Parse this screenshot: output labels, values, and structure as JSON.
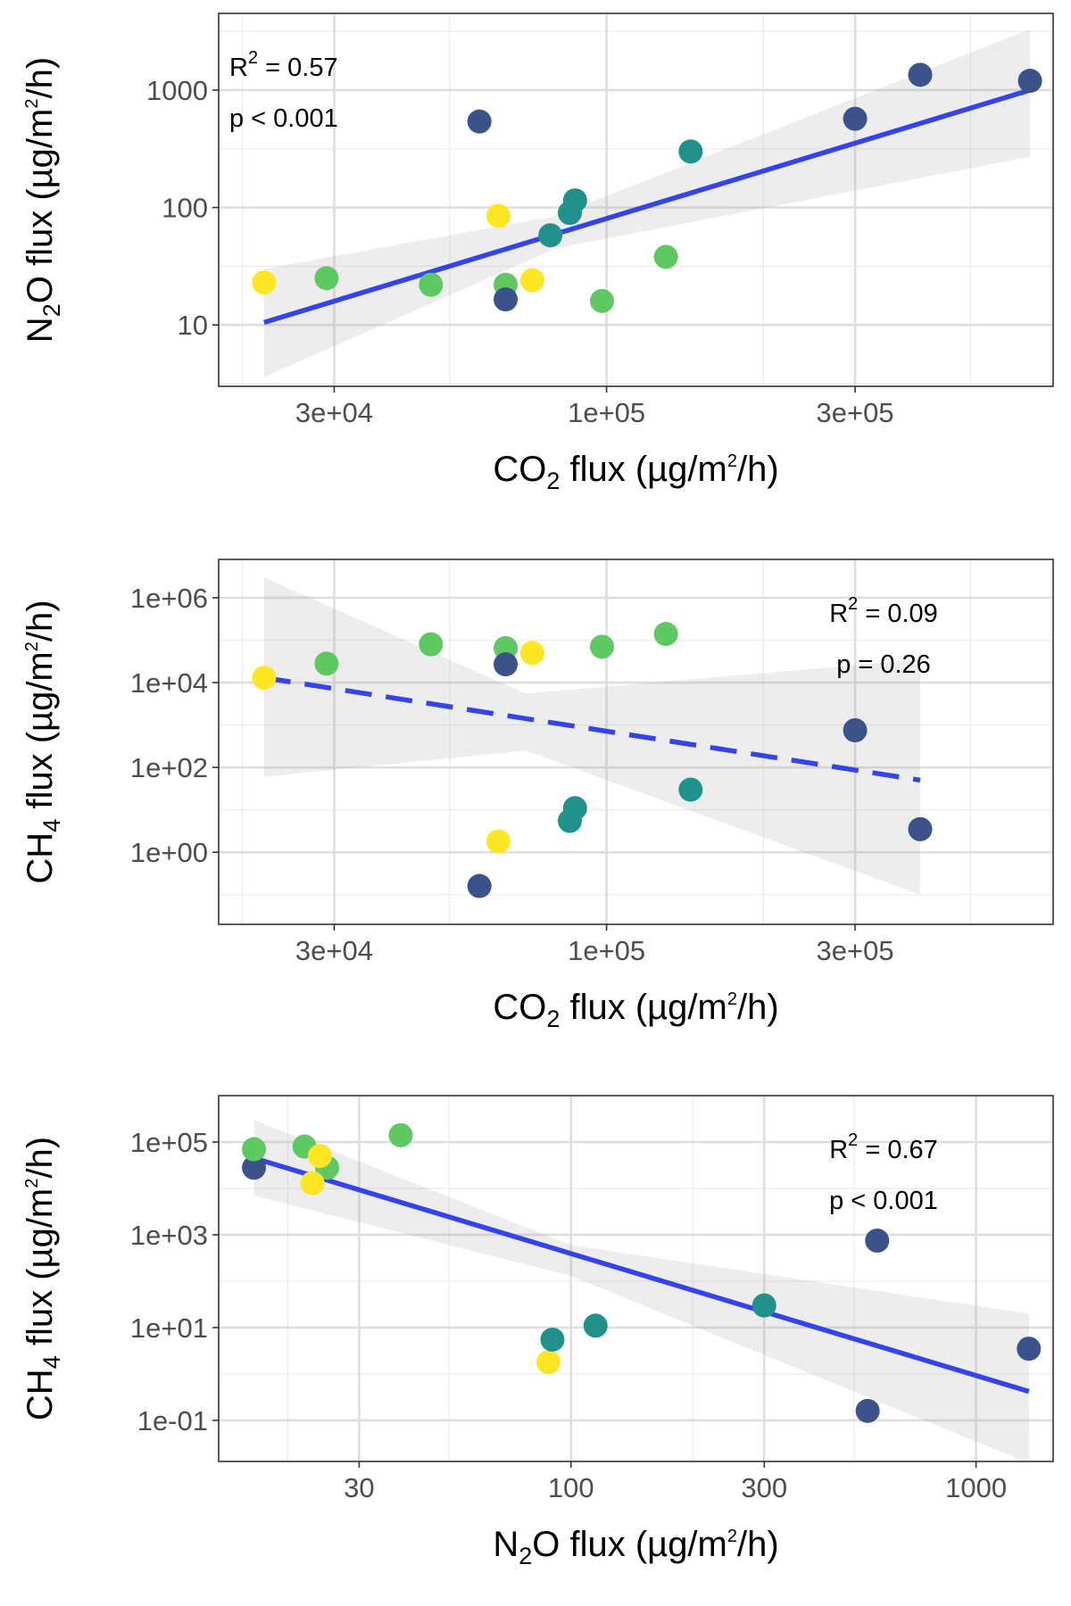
{
  "chart_data": [
    {
      "type": "scatter",
      "x_scale": "log",
      "y_scale": "log",
      "xlabel": {
        "pre": "CO",
        "sub": "2",
        "mid": " flux (µg/m",
        "sup": "2",
        "post": "/h)"
      },
      "ylabel": {
        "pre": "N",
        "sub": "2",
        "mid": "O flux (µg/m",
        "sup": "2",
        "post": "/h)"
      },
      "xlim": [
        18000,
        720000
      ],
      "ylim": [
        3,
        4500
      ],
      "x_ticks": [
        30000,
        100000,
        300000
      ],
      "x_tick_labels": [
        "3e+04",
        "1e+05",
        "3e+05"
      ],
      "x_minor_gridlines": [
        20000,
        50000,
        200000,
        500000
      ],
      "y_ticks": [
        10,
        100,
        1000
      ],
      "y_tick_labels": [
        "10",
        "100",
        "1000"
      ],
      "y_minor_gridlines": [
        3.16,
        31.6,
        316,
        3162
      ],
      "grid": true,
      "annotation": {
        "r2_prefix": "R",
        "r2_sup": "2",
        "r2_value": " = 0.57",
        "p_text": "p < 0.001",
        "position": "top-left"
      },
      "fit": {
        "x_range": [
          22000,
          650000
        ],
        "y_range": [
          10.5,
          1000
        ],
        "style": "solid",
        "color": "#3344ee",
        "band_lower": [
          [
            22000,
            3.6
          ],
          [
            80000,
            45
          ],
          [
            650000,
            270
          ]
        ],
        "band_upper": [
          [
            22000,
            30
          ],
          [
            80000,
            85
          ],
          [
            650000,
            3300
          ]
        ]
      },
      "points": [
        {
          "x": 22000,
          "y": 23,
          "color": "#fde725"
        },
        {
          "x": 29000,
          "y": 25,
          "color": "#5ec962"
        },
        {
          "x": 46000,
          "y": 22,
          "color": "#5ec962"
        },
        {
          "x": 62000,
          "y": 85,
          "color": "#fde725"
        },
        {
          "x": 64000,
          "y": 22,
          "color": "#5ec962"
        },
        {
          "x": 64000,
          "y": 16.5,
          "color": "#3b528b"
        },
        {
          "x": 57000,
          "y": 540,
          "color": "#3b528b"
        },
        {
          "x": 72000,
          "y": 24,
          "color": "#fde725"
        },
        {
          "x": 78000,
          "y": 58,
          "color": "#21918c"
        },
        {
          "x": 85000,
          "y": 90,
          "color": "#21918c"
        },
        {
          "x": 87000,
          "y": 115,
          "color": "#21918c"
        },
        {
          "x": 98000,
          "y": 16,
          "color": "#5ec962"
        },
        {
          "x": 130000,
          "y": 38,
          "color": "#5ec962"
        },
        {
          "x": 145000,
          "y": 300,
          "color": "#21918c"
        },
        {
          "x": 300000,
          "y": 570,
          "color": "#3b528b"
        },
        {
          "x": 400000,
          "y": 1350,
          "color": "#3b528b"
        },
        {
          "x": 650000,
          "y": 1200,
          "color": "#3b528b"
        }
      ]
    },
    {
      "type": "scatter",
      "x_scale": "log",
      "y_scale": "log",
      "xlabel": {
        "pre": "CO",
        "sub": "2",
        "mid": " flux (µg/m",
        "sup": "2",
        "post": "/h)"
      },
      "ylabel": {
        "pre": "CH",
        "sub": "4",
        "mid": " flux (µg/m",
        "sup": "2",
        "post": "/h)"
      },
      "xlim": [
        18000,
        720000
      ],
      "ylim": [
        0.02,
        8000000
      ],
      "x_ticks": [
        30000,
        100000,
        300000
      ],
      "x_tick_labels": [
        "3e+04",
        "1e+05",
        "3e+05"
      ],
      "x_minor_gridlines": [
        20000,
        50000,
        200000,
        500000
      ],
      "y_ticks": [
        1,
        100,
        10000,
        1000000
      ],
      "y_tick_labels": [
        "1e+00",
        "1e+02",
        "1e+04",
        "1e+06"
      ],
      "y_minor_gridlines": [
        0.1,
        10,
        1000,
        100000
      ],
      "grid": true,
      "annotation": {
        "r2_prefix": "R",
        "r2_sup": "2",
        "r2_value": " = 0.09",
        "p_text": "p = 0.26",
        "position": "top-right"
      },
      "fit": {
        "x_range": [
          22000,
          400000
        ],
        "y_range": [
          13000,
          50
        ],
        "style": "dashed",
        "color": "#3344ee",
        "band_lower": [
          [
            22000,
            60
          ],
          [
            70000,
            250
          ],
          [
            400000,
            0.1
          ]
        ],
        "band_upper": [
          [
            22000,
            3000000
          ],
          [
            70000,
            5500
          ],
          [
            400000,
            35000
          ]
        ]
      },
      "points": [
        {
          "x": 22000,
          "y": 13000,
          "color": "#fde725"
        },
        {
          "x": 29000,
          "y": 28000,
          "color": "#5ec962"
        },
        {
          "x": 46000,
          "y": 80000,
          "color": "#5ec962"
        },
        {
          "x": 64000,
          "y": 65000,
          "color": "#5ec962"
        },
        {
          "x": 64000,
          "y": 27000,
          "color": "#3b528b"
        },
        {
          "x": 72000,
          "y": 50000,
          "color": "#fde725"
        },
        {
          "x": 98000,
          "y": 70000,
          "color": "#5ec962"
        },
        {
          "x": 130000,
          "y": 140000,
          "color": "#5ec962"
        },
        {
          "x": 62000,
          "y": 1.8,
          "color": "#fde725"
        },
        {
          "x": 57000,
          "y": 0.16,
          "color": "#3b528b"
        },
        {
          "x": 85000,
          "y": 5.5,
          "color": "#21918c"
        },
        {
          "x": 87000,
          "y": 11,
          "color": "#21918c"
        },
        {
          "x": 145000,
          "y": 30,
          "color": "#21918c"
        },
        {
          "x": 300000,
          "y": 750,
          "color": "#3b528b"
        },
        {
          "x": 400000,
          "y": 3.5,
          "color": "#3b528b"
        }
      ]
    },
    {
      "type": "scatter",
      "x_scale": "log",
      "y_scale": "log",
      "xlabel": {
        "pre": "N",
        "sub": "2",
        "mid": "O flux (µg/m",
        "sup": "2",
        "post": "/h)"
      },
      "ylabel": {
        "pre": "CH",
        "sub": "4",
        "mid": " flux (µg/m",
        "sup": "2",
        "post": "/h)"
      },
      "xlim": [
        13.5,
        1550
      ],
      "ylim": [
        0.013,
        1000000
      ],
      "x_ticks": [
        30,
        100,
        300,
        1000
      ],
      "x_tick_labels": [
        "30",
        "100",
        "300",
        "1000"
      ],
      "x_minor_gridlines": [
        20,
        50,
        200,
        500
      ],
      "y_ticks": [
        0.1,
        10,
        1000,
        100000
      ],
      "y_tick_labels": [
        "1e-01",
        "1e+01",
        "1e+03",
        "1e+05"
      ],
      "y_minor_gridlines": [
        0.01,
        1,
        100,
        10000
      ],
      "grid": true,
      "annotation": {
        "r2_prefix": "R",
        "r2_sup": "2",
        "r2_value": " = 0.67",
        "p_text": "p < 0.001",
        "position": "top-right"
      },
      "fit": {
        "x_range": [
          16.5,
          1350
        ],
        "y_range": [
          45000,
          0.42
        ],
        "style": "solid",
        "color": "#3344ee",
        "band_lower": [
          [
            16.5,
            7000
          ],
          [
            100,
            130
          ],
          [
            1350,
            0.012
          ]
        ],
        "band_upper": [
          [
            16.5,
            300000
          ],
          [
            100,
            600
          ],
          [
            1350,
            20
          ]
        ]
      },
      "points": [
        {
          "x": 16.5,
          "y": 28000,
          "color": "#3b528b"
        },
        {
          "x": 16.5,
          "y": 70000,
          "color": "#5ec962"
        },
        {
          "x": 22,
          "y": 80000,
          "color": "#5ec962"
        },
        {
          "x": 25,
          "y": 28000,
          "color": "#5ec962"
        },
        {
          "x": 24,
          "y": 50000,
          "color": "#fde725"
        },
        {
          "x": 23,
          "y": 13000,
          "color": "#fde725"
        },
        {
          "x": 38,
          "y": 140000,
          "color": "#5ec962"
        },
        {
          "x": 88,
          "y": 1.8,
          "color": "#fde725"
        },
        {
          "x": 90,
          "y": 5.5,
          "color": "#21918c"
        },
        {
          "x": 115,
          "y": 11,
          "color": "#21918c"
        },
        {
          "x": 300,
          "y": 30,
          "color": "#21918c"
        },
        {
          "x": 540,
          "y": 0.16,
          "color": "#3b528b"
        },
        {
          "x": 570,
          "y": 750,
          "color": "#3b528b"
        },
        {
          "x": 1350,
          "y": 3.5,
          "color": "#3b528b"
        }
      ]
    }
  ]
}
